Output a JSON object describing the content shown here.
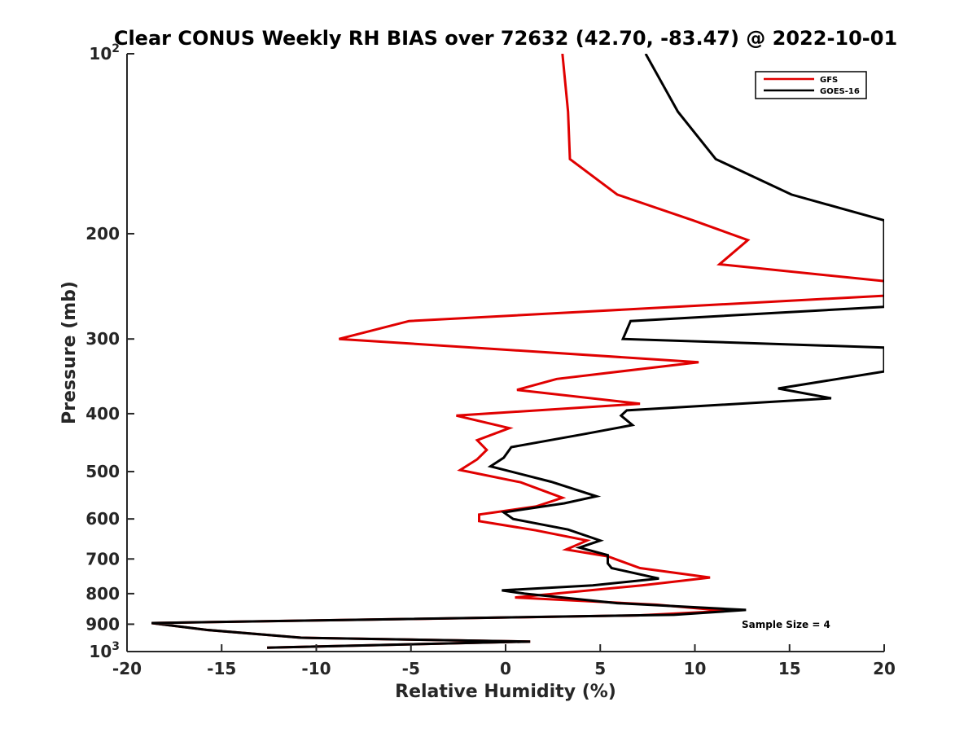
{
  "chart_data": {
    "type": "line",
    "title": "Clear CONUS Weekly RH BIAS over 72632 (42.70, -83.47) @ 2022-10-01",
    "xlabel": "Relative Humidity (%)",
    "ylabel": "Pressure (mb)",
    "xlim": [
      -20,
      20
    ],
    "ylim": [
      100,
      1000
    ],
    "yscale": "log",
    "yreversed": true,
    "grid": false,
    "legend_position": "top-right",
    "x_ticks": [
      {
        "value": -20,
        "label": "-20"
      },
      {
        "value": -15,
        "label": "-15"
      },
      {
        "value": -10,
        "label": "-10"
      },
      {
        "value": -5,
        "label": "-5"
      },
      {
        "value": 0,
        "label": "0"
      },
      {
        "value": 5,
        "label": "5"
      },
      {
        "value": 10,
        "label": "10"
      },
      {
        "value": 15,
        "label": "15"
      },
      {
        "value": 20,
        "label": "20"
      }
    ],
    "y_ticks": [
      {
        "value": 100,
        "base": "10",
        "exp": "2"
      },
      {
        "value": 200,
        "base": "200",
        "exp": ""
      },
      {
        "value": 300,
        "base": "300",
        "exp": ""
      },
      {
        "value": 400,
        "base": "400",
        "exp": ""
      },
      {
        "value": 500,
        "base": "500",
        "exp": ""
      },
      {
        "value": 600,
        "base": "600",
        "exp": ""
      },
      {
        "value": 700,
        "base": "700",
        "exp": ""
      },
      {
        "value": 800,
        "base": "800",
        "exp": ""
      },
      {
        "value": 900,
        "base": "900",
        "exp": ""
      },
      {
        "value": 1000,
        "base": "10",
        "exp": "3"
      }
    ],
    "annotation": "Sample Size = 4",
    "series": [
      {
        "name": "GFS",
        "color": "#e00000",
        "points": [
          [
            3.0,
            100
          ],
          [
            3.3,
            125
          ],
          [
            3.4,
            150
          ],
          [
            5.9,
            172
          ],
          [
            9.9,
            190
          ],
          [
            12.8,
            205
          ],
          [
            11.3,
            225
          ],
          [
            20,
            240
          ],
          [
            20,
            254
          ],
          [
            -5.1,
            280
          ],
          [
            -8.8,
            300
          ],
          [
            10.2,
            328
          ],
          [
            2.7,
            350
          ],
          [
            0.6,
            365
          ],
          [
            7.1,
            385
          ],
          [
            -2.6,
            403
          ],
          [
            0.2,
            423
          ],
          [
            -1.5,
            443
          ],
          [
            -1.0,
            460
          ],
          [
            -1.5,
            477
          ],
          [
            -2.4,
            497
          ],
          [
            0.8,
            521
          ],
          [
            3.0,
            553
          ],
          [
            1.6,
            572
          ],
          [
            -1.4,
            590
          ],
          [
            -1.4,
            605
          ],
          [
            1.6,
            627
          ],
          [
            4.3,
            652
          ],
          [
            3.2,
            675
          ],
          [
            5.4,
            693
          ],
          [
            7.1,
            725
          ],
          [
            10.8,
            752
          ],
          [
            7.2,
            775
          ],
          [
            0.5,
            812
          ],
          [
            8.0,
            835
          ],
          [
            11.7,
            855
          ],
          [
            7.0,
            870
          ],
          [
            -18.7,
            896
          ],
          [
            -15.8,
            920
          ],
          [
            -10.8,
            948
          ],
          [
            -0.7,
            960
          ],
          [
            1.3,
            962
          ],
          [
            -12.6,
            985
          ]
        ]
      },
      {
        "name": "GOES-16",
        "color": "#000000",
        "points": [
          [
            7.4,
            100
          ],
          [
            9.1,
            125
          ],
          [
            11.1,
            150
          ],
          [
            15.1,
            172
          ],
          [
            20,
            190
          ],
          [
            20,
            265
          ],
          [
            6.6,
            280
          ],
          [
            6.2,
            300
          ],
          [
            20,
            310
          ],
          [
            20,
            340
          ],
          [
            14.4,
            363
          ],
          [
            17.2,
            377
          ],
          [
            6.4,
            395
          ],
          [
            6.1,
            403
          ],
          [
            6.7,
            418
          ],
          [
            4.1,
            433
          ],
          [
            0.3,
            455
          ],
          [
            -0.1,
            474
          ],
          [
            -0.8,
            490
          ],
          [
            2.4,
            520
          ],
          [
            4.8,
            550
          ],
          [
            3.1,
            565
          ],
          [
            -0.1,
            585
          ],
          [
            0.4,
            600
          ],
          [
            3.3,
            625
          ],
          [
            5.0,
            652
          ],
          [
            3.9,
            670
          ],
          [
            5.4,
            690
          ],
          [
            5.4,
            712
          ],
          [
            5.6,
            725
          ],
          [
            8.1,
            755
          ],
          [
            4.6,
            775
          ],
          [
            -0.2,
            790
          ],
          [
            1.0,
            800
          ],
          [
            5.9,
            830
          ],
          [
            12.7,
            852
          ],
          [
            8.9,
            868
          ],
          [
            -18.7,
            896
          ],
          [
            -15.8,
            920
          ],
          [
            -10.8,
            948
          ],
          [
            -0.7,
            960
          ],
          [
            1.3,
            962
          ],
          [
            -12.6,
            985
          ]
        ]
      }
    ]
  }
}
